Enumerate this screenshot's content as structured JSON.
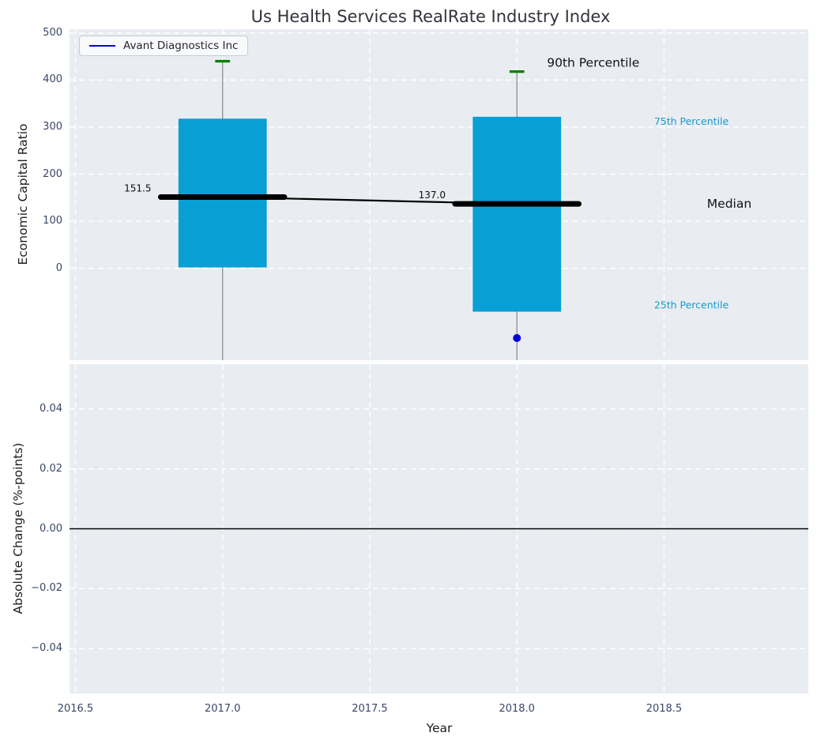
{
  "chart_data": [
    {
      "type": "bar",
      "subtype": "percentile-band-boxplot",
      "title": "Us Health Services RealRate Industry Index",
      "ylabel": "Economic Capital Ratio",
      "xlabel": "",
      "x": [
        2017.0,
        2018.0
      ],
      "series": [
        {
          "name": "90th Percentile",
          "values": [
            440,
            418
          ],
          "style": "green-cap"
        },
        {
          "name": "75th Percentile",
          "values": [
            318,
            322
          ],
          "style": "bar-top"
        },
        {
          "name": "Median",
          "values": [
            151.5,
            137.0
          ],
          "style": "thick-black-line"
        },
        {
          "name": "25th Percentile",
          "values": [
            2,
            -92
          ],
          "style": "bar-bottom"
        }
      ],
      "median_value_labels": [
        "151.5",
        "137.0"
      ],
      "company_point": {
        "label": "Avant Diagnostics Inc",
        "x": 2018.0,
        "value": -148
      },
      "annotations": {
        "p90": "90th Percentile",
        "p75": "75th Percentile",
        "median": "Median",
        "p25": "25th Percentile"
      },
      "legend": {
        "label": "Avant Diagnostics Inc",
        "position": "upper left"
      },
      "yticks": {
        "values": [
          0,
          100,
          200,
          300,
          400,
          500
        ],
        "labels": [
          "0",
          "100",
          "200",
          "300",
          "400",
          "500"
        ]
      },
      "xticks": {
        "values": [
          2016.5,
          2017.0,
          2017.5,
          2018.0,
          2018.5
        ],
        "labels": [
          "2016.5",
          "2017.0",
          "2017.5",
          "2018.0",
          "2018.5"
        ]
      },
      "ylim": [
        -195,
        508
      ],
      "xlim": [
        2016.48,
        2018.99
      ],
      "grid": true,
      "colors": {
        "bar": "#089fd4",
        "cap": "#008000",
        "median": "#000000",
        "company": "#0000e0",
        "percentile_label": "#1899cc",
        "range_line": "#858585",
        "axes_bg": "#e9edf1",
        "grid": "#ffffff",
        "tick": "#3a4668"
      }
    },
    {
      "type": "line",
      "subtype": "empty-change-panel",
      "ylabel": "Absolute Change (%-points)",
      "xlabel": "Year",
      "yticks": {
        "values": [
          0.04,
          0.02,
          0.0,
          -0.02,
          -0.04
        ],
        "labels": [
          "0.04",
          "0.02",
          "0.00",
          "−0.02",
          "−0.04"
        ]
      },
      "ylim": [
        -0.055,
        0.055
      ],
      "zero_line": 0.0,
      "series": [],
      "grid": true
    }
  ]
}
